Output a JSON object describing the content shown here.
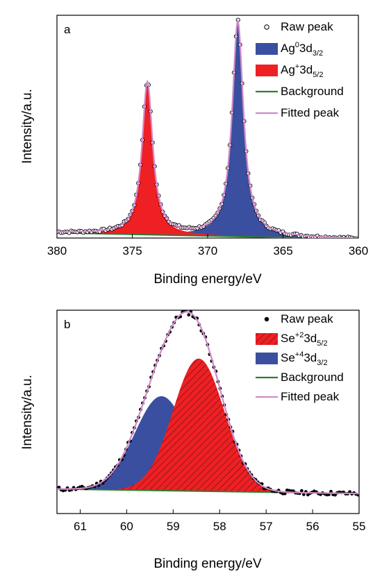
{
  "chart_data": [
    {
      "type": "line",
      "panel_label": "a",
      "xlabel": "Binding energy/eV",
      "ylabel": "Intensity/a.u.",
      "xlim": [
        380,
        360
      ],
      "x_reversed": true,
      "ylim": [
        -0.2,
        10.5
      ],
      "xticks": [
        380,
        375,
        370,
        365,
        360
      ],
      "yticks_shown": false,
      "grid": false,
      "legend_position": "top-right",
      "baseline": {
        "start": 0.05,
        "end": -0.25
      },
      "peaks": [
        {
          "name": "Ag03d3/2",
          "center": 368.0,
          "height": 10.3,
          "fwhm": 0.9,
          "color": "#3a4fa0"
        },
        {
          "name": "Ag+3d5/2",
          "center": 374.0,
          "height": 7.3,
          "fwhm": 0.85,
          "color": "#ee2024"
        }
      ],
      "legend": [
        {
          "label": "Raw peak",
          "base": "Raw peak",
          "sup": "",
          "sub": "",
          "kind": "open-circle",
          "color": "#000000"
        },
        {
          "label": "Ag03d3/2",
          "base": "Ag",
          "sup": "0",
          "mid": "3d",
          "sub": "3/2",
          "kind": "fill",
          "color": "#3a4fa0"
        },
        {
          "label": "Ag+3d5/2",
          "base": "Ag",
          "sup": "+",
          "mid": "3d",
          "sub": "5/2",
          "kind": "fill",
          "color": "#ee2024"
        },
        {
          "label": "Background",
          "base": "Background",
          "sup": "",
          "sub": "",
          "kind": "line",
          "color": "#2e7d32"
        },
        {
          "label": "Fitted peak",
          "base": "Fitted peak",
          "sup": "",
          "sub": "",
          "kind": "line",
          "color": "#d08ac8"
        }
      ]
    },
    {
      "type": "line",
      "panel_label": "b",
      "xlabel": "Binding energy/eV",
      "ylabel": "Intensity/a.u.",
      "xlim": [
        61.5,
        55
      ],
      "x_reversed": true,
      "ylim": [
        -1.2,
        10
      ],
      "xticks": [
        61,
        60,
        59,
        58,
        57,
        56,
        55
      ],
      "yticks_shown": false,
      "grid": false,
      "legend_position": "top-right",
      "baseline": {
        "start": 0.15,
        "end": -0.1
      },
      "peaks": [
        {
          "name": "Se+43d3/2",
          "center": 59.25,
          "height": 5.2,
          "fwhm": 1.35,
          "color": "#3a4fa0"
        },
        {
          "name": "Se+23d5/2",
          "center": 58.45,
          "height": 7.3,
          "fwhm": 1.3,
          "color": "#ee2024"
        }
      ],
      "legend": [
        {
          "label": "Raw peak",
          "base": "Raw peak",
          "sup": "",
          "sub": "",
          "kind": "dot",
          "color": "#000000"
        },
        {
          "label": "Se+23d5/2",
          "base": "Se",
          "sup": "+2",
          "mid": "3d",
          "sub": "5/2",
          "kind": "hatch",
          "color": "#ee2024"
        },
        {
          "label": "Se+43d3/2",
          "base": "Se",
          "sup": "+4",
          "mid": "3d",
          "sub": "3/2",
          "kind": "fill",
          "color": "#3a4fa0"
        },
        {
          "label": "Background",
          "base": "Background",
          "sup": "",
          "sub": "",
          "kind": "line",
          "color": "#2e7d32"
        },
        {
          "label": "Fitted peak",
          "base": "Fitted peak",
          "sup": "",
          "sub": "",
          "kind": "line",
          "color": "#d08ac8"
        }
      ]
    }
  ]
}
